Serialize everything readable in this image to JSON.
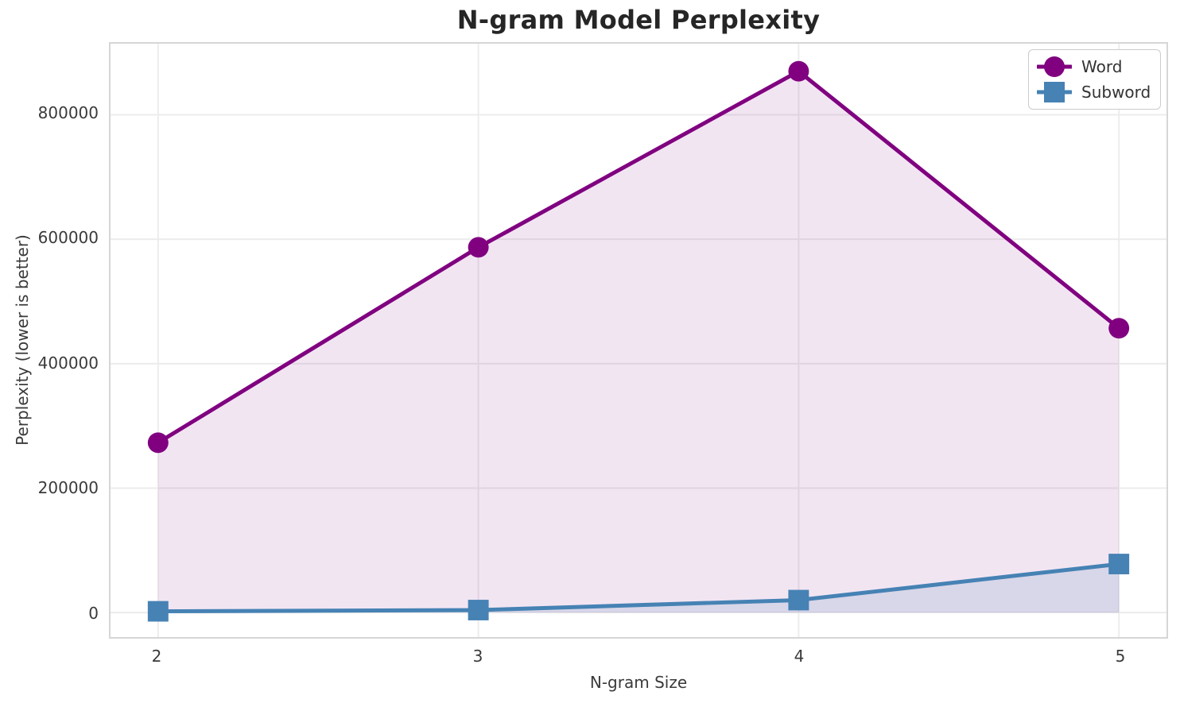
{
  "figure": {
    "background": "#ffffff",
    "grid_color": "#ececec",
    "spine_color": "#d6d6d6",
    "text_color": "#3a3a3a",
    "title_color": "#262626"
  },
  "legend": {
    "position": "upper right",
    "items": [
      {
        "label": "Word",
        "color": "#800080",
        "marker": "circle"
      },
      {
        "label": "Subword",
        "color": "#4682b4",
        "marker": "square"
      }
    ]
  },
  "chart_data": {
    "type": "line",
    "title": "N-gram Model Perplexity",
    "xlabel": "N-gram Size",
    "ylabel": "Perplexity (lower is better)",
    "x": [
      2,
      3,
      4,
      5
    ],
    "series": [
      {
        "name": "Word",
        "values": [
          273000,
          587000,
          870000,
          457000
        ],
        "color": "#800080",
        "marker": "circle",
        "line_width": 5,
        "fill_to_zero": true,
        "fill_opacity": 0.1
      },
      {
        "name": "Subword",
        "values": [
          2000,
          4000,
          20000,
          78000
        ],
        "color": "#4682b4",
        "marker": "square",
        "line_width": 5,
        "fill_to_zero": true,
        "fill_opacity": 0.15
      }
    ],
    "xticks": {
      "values": [
        2,
        3,
        4,
        5
      ],
      "labels": [
        "2",
        "3",
        "4",
        "5"
      ]
    },
    "yticks": {
      "values": [
        0,
        200000,
        400000,
        600000,
        800000
      ],
      "labels": [
        "0",
        "200000",
        "400000",
        "600000",
        "800000"
      ]
    },
    "xlim": [
      1.8515,
      5.1485
    ],
    "ylim": [
      -39400,
      914300
    ],
    "grid": true,
    "legend_position": "upper right"
  }
}
